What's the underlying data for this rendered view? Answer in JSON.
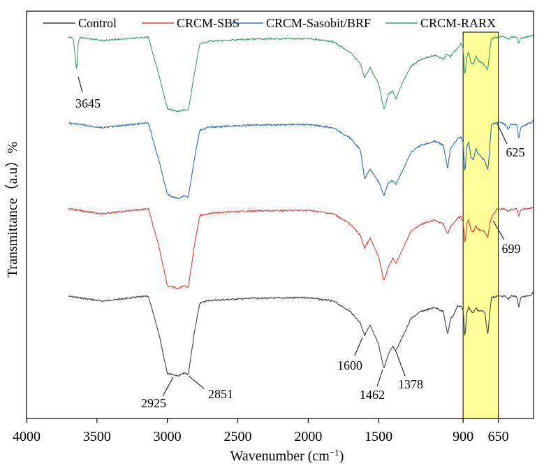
{
  "chart_data": {
    "type": "line",
    "xlabel": "Wavenumber (cm",
    "xlabel_sup": "−1",
    "xlabel_close": ")",
    "ylabel": "Transmittance（a.u）%",
    "xlim": [
      4000,
      400
    ],
    "x_reversed": true,
    "xticks": [
      {
        "value": 4000,
        "label": "4000"
      },
      {
        "value": 3500,
        "label": "3500"
      },
      {
        "value": 3000,
        "label": "3000"
      },
      {
        "value": 2500,
        "label": "2500"
      },
      {
        "value": 2000,
        "label": "2000"
      },
      {
        "value": 1500,
        "label": "1500"
      },
      {
        "value": 900,
        "label": "900"
      },
      {
        "value": 650,
        "label": "650"
      }
    ],
    "highlight_band": {
      "from": 900,
      "to": 650,
      "color": "#ffff99"
    },
    "series": [
      {
        "name": "Control",
        "color": "#404040",
        "baseline": 424,
        "points": [
          [
            3700,
            424
          ],
          [
            3460,
            431
          ],
          [
            3200,
            425
          ],
          [
            3135,
            424
          ],
          [
            3060,
            478
          ],
          [
            3000,
            534
          ],
          [
            2960,
            536
          ],
          [
            2925,
            538
          ],
          [
            2880,
            534
          ],
          [
            2851,
            536
          ],
          [
            2810,
            478
          ],
          [
            2770,
            434
          ],
          [
            2700,
            430
          ],
          [
            2400,
            427
          ],
          [
            2000,
            426
          ],
          [
            1820,
            431
          ],
          [
            1700,
            446
          ],
          [
            1630,
            462
          ],
          [
            1600,
            480
          ],
          [
            1560,
            466
          ],
          [
            1500,
            493
          ],
          [
            1462,
            528
          ],
          [
            1430,
            506
          ],
          [
            1400,
            495
          ],
          [
            1378,
            502
          ],
          [
            1330,
            482
          ],
          [
            1270,
            456
          ],
          [
            1200,
            446
          ],
          [
            1100,
            440
          ],
          [
            1040,
            446
          ],
          [
            1010,
            480
          ],
          [
            990,
            456
          ],
          [
            970,
            452
          ],
          [
            940,
            438
          ],
          [
            915,
            438
          ],
          [
            900,
            445
          ],
          [
            887,
            482
          ],
          [
            873,
            446
          ],
          [
            860,
            440
          ],
          [
            845,
            445
          ],
          [
            825,
            448
          ],
          [
            810,
            440
          ],
          [
            795,
            445
          ],
          [
            765,
            445
          ],
          [
            745,
            448
          ],
          [
            725,
            480
          ],
          [
            710,
            445
          ],
          [
            699,
            426
          ],
          [
            660,
            424
          ],
          [
            600,
            424
          ],
          [
            580,
            428
          ],
          [
            560,
            424
          ],
          [
            520,
            424
          ],
          [
            505,
            440
          ],
          [
            490,
            425
          ],
          [
            450,
            424
          ],
          [
            420,
            422
          ],
          [
            400,
            418
          ]
        ],
        "line_width": 1.1
      },
      {
        "name": "CRCM-SBS",
        "color": "#e0403a",
        "baseline": 299,
        "points": [
          [
            3700,
            299
          ],
          [
            3460,
            306
          ],
          [
            3200,
            300
          ],
          [
            3135,
            299
          ],
          [
            3060,
            353
          ],
          [
            3000,
            409
          ],
          [
            2960,
            411
          ],
          [
            2925,
            413
          ],
          [
            2880,
            409
          ],
          [
            2851,
            411
          ],
          [
            2810,
            353
          ],
          [
            2770,
            309
          ],
          [
            2700,
            305
          ],
          [
            2400,
            302
          ],
          [
            2000,
            301
          ],
          [
            1820,
            306
          ],
          [
            1700,
            321
          ],
          [
            1630,
            337
          ],
          [
            1600,
            355
          ],
          [
            1560,
            341
          ],
          [
            1500,
            368
          ],
          [
            1462,
            403
          ],
          [
            1430,
            381
          ],
          [
            1400,
            370
          ],
          [
            1378,
            377
          ],
          [
            1330,
            357
          ],
          [
            1270,
            331
          ],
          [
            1200,
            321
          ],
          [
            1100,
            315
          ],
          [
            1040,
            321
          ],
          [
            1010,
            335
          ],
          [
            990,
            325
          ],
          [
            970,
            320
          ],
          [
            940,
            312
          ],
          [
            915,
            310
          ],
          [
            900,
            318
          ],
          [
            887,
            348
          ],
          [
            873,
            320
          ],
          [
            860,
            315
          ],
          [
            845,
            330
          ],
          [
            825,
            332
          ],
          [
            810,
            322
          ],
          [
            795,
            328
          ],
          [
            765,
            330
          ],
          [
            745,
            332
          ],
          [
            725,
            340
          ],
          [
            710,
            320
          ],
          [
            699,
            312
          ],
          [
            660,
            299
          ],
          [
            600,
            299
          ],
          [
            580,
            303
          ],
          [
            560,
            299
          ],
          [
            520,
            299
          ],
          [
            505,
            310
          ],
          [
            490,
            300
          ],
          [
            450,
            299
          ],
          [
            420,
            298
          ],
          [
            400,
            296
          ]
        ],
        "line_width": 1.1
      },
      {
        "name": "CRCM-Sasobit/BRF",
        "color": "#2f6db8",
        "baseline": 176,
        "points": [
          [
            3700,
            176
          ],
          [
            3460,
            183
          ],
          [
            3200,
            177
          ],
          [
            3135,
            176
          ],
          [
            3060,
            230
          ],
          [
            3000,
            278
          ],
          [
            2960,
            282
          ],
          [
            2925,
            284
          ],
          [
            2880,
            280
          ],
          [
            2851,
            282
          ],
          [
            2810,
            230
          ],
          [
            2770,
            186
          ],
          [
            2700,
            182
          ],
          [
            2400,
            179
          ],
          [
            2000,
            178
          ],
          [
            1820,
            183
          ],
          [
            1700,
            198
          ],
          [
            1630,
            214
          ],
          [
            1600,
            256
          ],
          [
            1560,
            242
          ],
          [
            1500,
            260
          ],
          [
            1462,
            280
          ],
          [
            1430,
            262
          ],
          [
            1400,
            258
          ],
          [
            1378,
            264
          ],
          [
            1330,
            244
          ],
          [
            1270,
            218
          ],
          [
            1200,
            208
          ],
          [
            1100,
            202
          ],
          [
            1040,
            208
          ],
          [
            1010,
            242
          ],
          [
            990,
            212
          ],
          [
            970,
            207
          ],
          [
            940,
            199
          ],
          [
            915,
            196
          ],
          [
            900,
            205
          ],
          [
            887,
            248
          ],
          [
            873,
            210
          ],
          [
            860,
            203
          ],
          [
            845,
            225
          ],
          [
            825,
            228
          ],
          [
            810,
            212
          ],
          [
            795,
            220
          ],
          [
            765,
            226
          ],
          [
            745,
            230
          ],
          [
            725,
            244
          ],
          [
            710,
            210
          ],
          [
            699,
            178
          ],
          [
            660,
            176
          ],
          [
            625,
            176
          ],
          [
            600,
            178
          ],
          [
            580,
            185
          ],
          [
            560,
            178
          ],
          [
            520,
            178
          ],
          [
            505,
            198
          ],
          [
            490,
            182
          ],
          [
            450,
            178
          ],
          [
            420,
            176
          ],
          [
            400,
            172
          ]
        ],
        "line_width": 1.1
      },
      {
        "name": "CRCM-RARX",
        "color": "#3e9e6b",
        "baseline": 53,
        "points": [
          [
            3700,
            53
          ],
          [
            3668,
            55
          ],
          [
            3655,
            80
          ],
          [
            3645,
            102
          ],
          [
            3632,
            60
          ],
          [
            3620,
            54
          ],
          [
            3460,
            58
          ],
          [
            3200,
            54
          ],
          [
            3135,
            53
          ],
          [
            3060,
            107
          ],
          [
            3000,
            155
          ],
          [
            2960,
            158
          ],
          [
            2925,
            160
          ],
          [
            2880,
            157
          ],
          [
            2851,
            158
          ],
          [
            2810,
            107
          ],
          [
            2770,
            63
          ],
          [
            2700,
            59
          ],
          [
            2400,
            56
          ],
          [
            2000,
            55
          ],
          [
            1820,
            60
          ],
          [
            1700,
            75
          ],
          [
            1630,
            91
          ],
          [
            1600,
            111
          ],
          [
            1560,
            97
          ],
          [
            1500,
            120
          ],
          [
            1462,
            157
          ],
          [
            1430,
            135
          ],
          [
            1400,
            130
          ],
          [
            1378,
            142
          ],
          [
            1330,
            118
          ],
          [
            1270,
            95
          ],
          [
            1200,
            85
          ],
          [
            1100,
            79
          ],
          [
            1040,
            85
          ],
          [
            1010,
            76
          ],
          [
            990,
            82
          ],
          [
            970,
            75
          ],
          [
            940,
            70
          ],
          [
            915,
            62
          ],
          [
            900,
            70
          ],
          [
            887,
            108
          ],
          [
            873,
            80
          ],
          [
            860,
            74
          ],
          [
            845,
            90
          ],
          [
            825,
            92
          ],
          [
            810,
            80
          ],
          [
            795,
            86
          ],
          [
            765,
            90
          ],
          [
            745,
            94
          ],
          [
            725,
            100
          ],
          [
            710,
            70
          ],
          [
            699,
            56
          ],
          [
            660,
            53
          ],
          [
            600,
            53
          ],
          [
            580,
            56
          ],
          [
            560,
            53
          ],
          [
            520,
            53
          ],
          [
            505,
            62
          ],
          [
            490,
            55
          ],
          [
            450,
            53
          ],
          [
            420,
            52
          ],
          [
            400,
            50
          ]
        ],
        "line_width": 1.1
      }
    ],
    "annotations": [
      {
        "label": "3645",
        "series": 3
      },
      {
        "label": "2925",
        "series": 0
      },
      {
        "label": "2851",
        "series": 0
      },
      {
        "label": "1600",
        "series": 0
      },
      {
        "label": "1462",
        "series": 0
      },
      {
        "label": "1378",
        "series": 0
      },
      {
        "label": "699",
        "series": 1
      },
      {
        "label": "625",
        "series": 2
      }
    ],
    "legend": {
      "position": "top",
      "entries": [
        "Control",
        "CRCM-SBS",
        "CRCM-Sasobit/BRF",
        "CRCM-RARX"
      ]
    },
    "grid": false
  }
}
